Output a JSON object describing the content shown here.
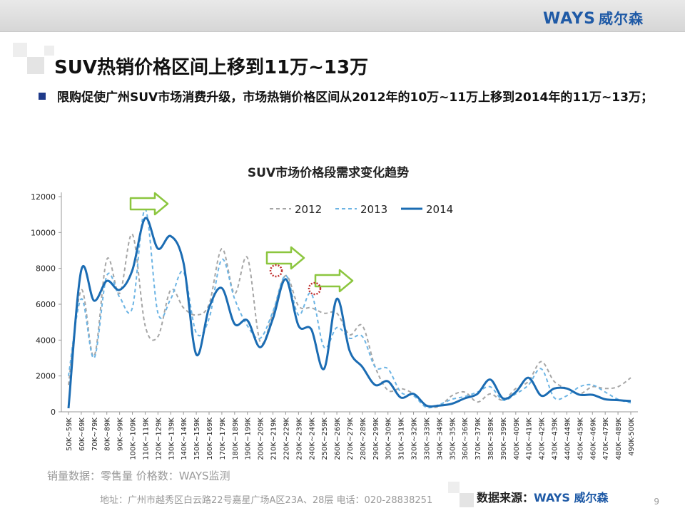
{
  "header": {
    "brand_latin": "WAYS",
    "brand_cn": "威尔森"
  },
  "slide": {
    "title": "SUV热销价格区间上移到11万~13万",
    "bullet": "限购促使广州SUV市场消费升级，市场热销价格区间从2012年的10万~11万上移到2014年的11万~13万；"
  },
  "footer": {
    "note": "销量数据：零售量    价格数：WAYS监测",
    "address": "地址：广州市越秀区白云路22号嘉星广场A区23A、28层    电话：020-28838251",
    "source_label": "数据来源：",
    "source_brand": "WAYS 威尔森",
    "page": "9"
  },
  "colors": {
    "s2012": "#a6a6a6",
    "s2013": "#6cb4e4",
    "s2014": "#1b6cb3",
    "arrow": "#8cc63f",
    "marker": "#c0302e"
  },
  "chart_data": {
    "type": "line",
    "title": "SUV市场价格段需求变化趋势",
    "xlabel": "",
    "ylabel": "",
    "ylim": [
      0,
      12000
    ],
    "yticks": [
      0,
      2000,
      4000,
      6000,
      8000,
      10000,
      12000
    ],
    "grid": false,
    "legend": "top-center",
    "categories": [
      "50K~59K",
      "60K~69K",
      "70K~79K",
      "80K~89K",
      "90K~99K",
      "100K~109K",
      "110K~119K",
      "120K~129K",
      "130K~139K",
      "140K~149K",
      "150K~159K",
      "160K~169K",
      "170K~179K",
      "180K~189K",
      "190K~199K",
      "200K~209K",
      "210K~219K",
      "220K~229K",
      "230K~239K",
      "240K~249K",
      "250K~259K",
      "260K~269K",
      "270K~279K",
      "280K~289K",
      "290K~299K",
      "300K~309K",
      "310K~319K",
      "320K~329K",
      "330K~339K",
      "340K~349K",
      "350K~359K",
      "360K~369K",
      "370K~379K",
      "380K~389K",
      "390K~399K",
      "400K~409K",
      "410K~419K",
      "420K~429K",
      "430K~439K",
      "440K~449K",
      "450K~459K",
      "460K~469K",
      "470K~479K",
      "480K~489K",
      "490K-500K"
    ],
    "series": [
      {
        "name": "2012",
        "style": "dashed",
        "values": [
          1500,
          6800,
          3100,
          8500,
          6600,
          9900,
          4800,
          4200,
          6800,
          5800,
          5400,
          6000,
          9100,
          6600,
          8600,
          3900,
          5500,
          7600,
          5900,
          5800,
          5500,
          5500,
          4300,
          4800,
          2500,
          1200,
          1300,
          1000,
          350,
          300,
          900,
          1100,
          550,
          1000,
          650,
          1300,
          1700,
          2800,
          1700,
          1300,
          1000,
          1400,
          1300,
          1400,
          1900
        ]
      },
      {
        "name": "2013",
        "style": "dashed",
        "values": [
          2000,
          6300,
          3000,
          7600,
          6400,
          5800,
          11300,
          5500,
          6300,
          7800,
          4400,
          5200,
          8500,
          6300,
          4800,
          4100,
          5600,
          7600,
          5400,
          6600,
          3600,
          4700,
          4100,
          4200,
          2500,
          2400,
          1100,
          900,
          250,
          400,
          700,
          850,
          1100,
          1400,
          650,
          1000,
          1500,
          2400,
          800,
          900,
          1400,
          1500,
          1100,
          700,
          500
        ]
      },
      {
        "name": "2014",
        "style": "solid",
        "values": [
          200,
          7900,
          6200,
          7300,
          6800,
          7900,
          10800,
          9100,
          9800,
          8300,
          3200,
          5800,
          6900,
          4900,
          5100,
          3600,
          5200,
          7400,
          4800,
          4600,
          2400,
          6300,
          3400,
          2500,
          1500,
          1700,
          800,
          1000,
          350,
          350,
          450,
          750,
          1000,
          1800,
          750,
          1100,
          1900,
          900,
          1300,
          1300,
          950,
          950,
          700,
          650,
          600
        ]
      }
    ]
  }
}
